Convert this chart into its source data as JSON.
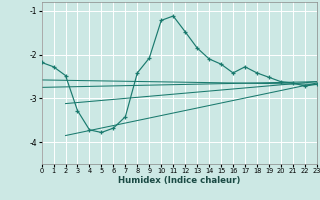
{
  "xlabel": "Humidex (Indice chaleur)",
  "background_color": "#cce8e4",
  "grid_color": "#ffffff",
  "line_color": "#1a7a6e",
  "xlim": [
    0,
    23
  ],
  "ylim": [
    -4.5,
    -0.8
  ],
  "yticks": [
    -4,
    -3,
    -2,
    -1
  ],
  "xticks": [
    0,
    1,
    2,
    3,
    4,
    5,
    6,
    7,
    8,
    9,
    10,
    11,
    12,
    13,
    14,
    15,
    16,
    17,
    18,
    19,
    20,
    21,
    22,
    23
  ],
  "curve_x": [
    0,
    1,
    2,
    3,
    4,
    5,
    6,
    7,
    8,
    9,
    10,
    11,
    12,
    13,
    14,
    15,
    16,
    17,
    18,
    19,
    20,
    21,
    22,
    23
  ],
  "curve_y": [
    -2.18,
    -2.28,
    -2.48,
    -3.28,
    -3.72,
    -3.78,
    -3.68,
    -3.42,
    -2.42,
    -2.08,
    -1.22,
    -1.12,
    -1.48,
    -1.85,
    -2.1,
    -2.22,
    -2.42,
    -2.28,
    -2.42,
    -2.52,
    -2.62,
    -2.65,
    -2.72,
    -2.68
  ],
  "reg_lines": [
    {
      "x": [
        0,
        23
      ],
      "y": [
        -2.58,
        -2.68
      ]
    },
    {
      "x": [
        0,
        23
      ],
      "y": [
        -2.75,
        -2.62
      ]
    },
    {
      "x": [
        2,
        23
      ],
      "y": [
        -3.12,
        -2.62
      ]
    },
    {
      "x": [
        2,
        23
      ],
      "y": [
        -3.85,
        -2.65
      ]
    }
  ]
}
